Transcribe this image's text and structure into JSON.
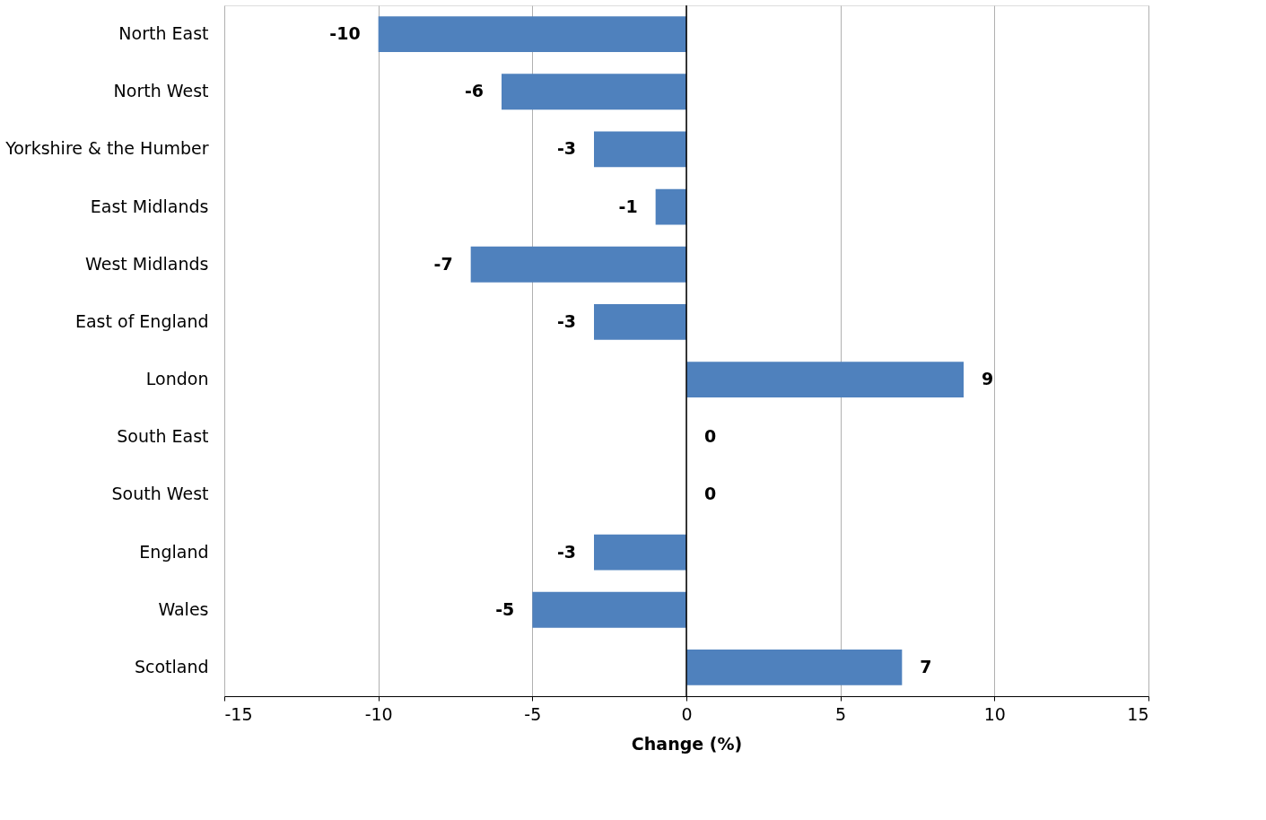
{
  "chart_data": {
    "type": "bar",
    "orientation": "horizontal",
    "xlabel": "Change (%)",
    "categories": [
      "North East",
      "North West",
      "Yorkshire & the Humber",
      "East Midlands",
      "West Midlands",
      "East of England",
      "London",
      "South East",
      "South West",
      "England",
      "Wales",
      "Scotland"
    ],
    "values": [
      -10,
      -6,
      -3,
      -1,
      -7,
      -3,
      9,
      0,
      0,
      -3,
      -5,
      7
    ],
    "color": "#4f81bd",
    "xlim": [
      -15,
      15
    ],
    "xticks": [
      -15,
      -10,
      -5,
      0,
      5,
      10,
      15
    ],
    "grid": "x",
    "data_labels": true
  }
}
